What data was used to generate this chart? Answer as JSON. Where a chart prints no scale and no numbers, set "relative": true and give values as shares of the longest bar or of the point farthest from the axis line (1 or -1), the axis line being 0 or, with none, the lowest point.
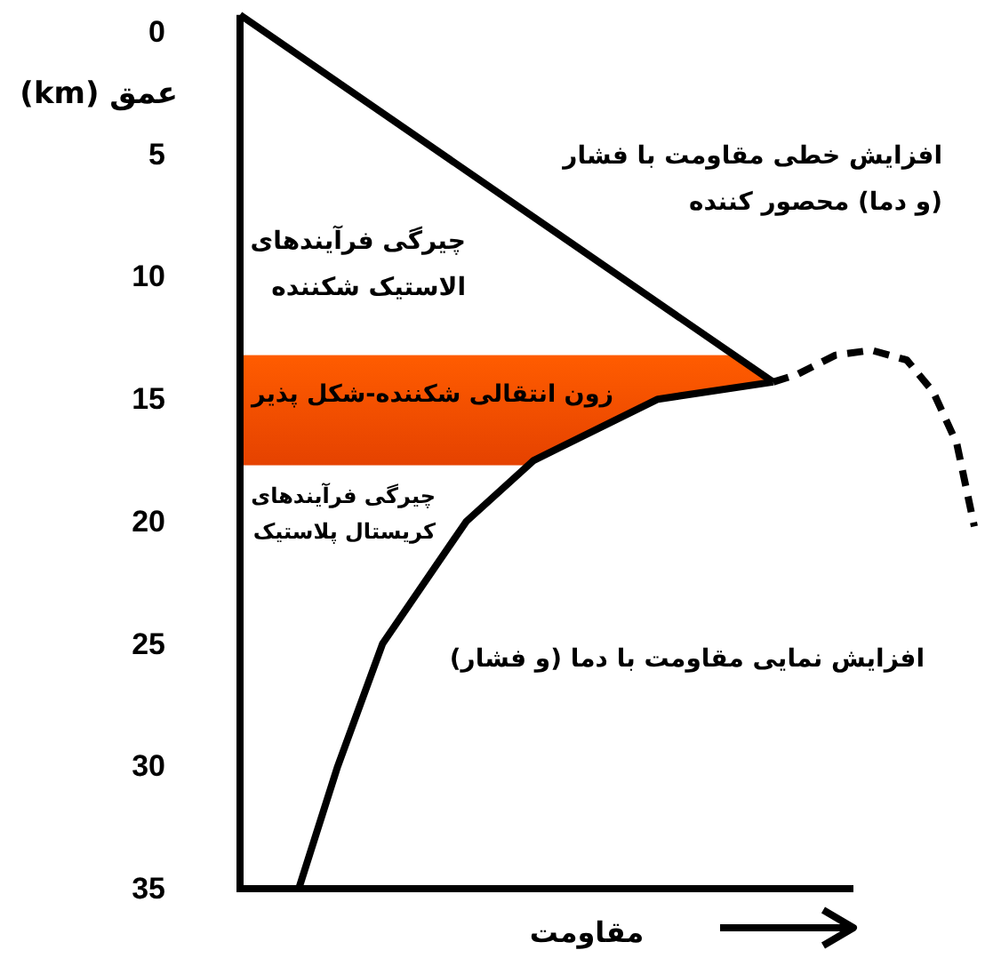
{
  "chart_data": {
    "type": "line",
    "relative": true,
    "orientation": "horizontal",
    "ylabel": "عمق (km)",
    "xlabel": "مقاومت",
    "ylim": [
      35,
      -0.7
    ],
    "yticks": [
      0,
      5,
      10,
      15,
      20,
      25,
      30,
      35
    ],
    "marker": "none",
    "series": [
      {
        "color": "#000000",
        "line_style": "solid",
        "x": [
          -0.7,
          14.3
        ],
        "values": [
          0,
          0.726
        ]
      },
      {
        "color": "#000000",
        "line_style": "solid",
        "x": [
          35,
          30,
          25,
          20,
          17.5,
          15,
          14.3
        ],
        "values": [
          0.08,
          0.133,
          0.194,
          0.308,
          0.4,
          0.569,
          0.726
        ]
      },
      {
        "color": "#000000",
        "line_style": "dashed",
        "x": [
          14.3,
          14.0,
          13.2,
          13.0,
          13.4,
          14.7,
          16.8,
          20.2
        ],
        "values": [
          0.726,
          0.758,
          0.811,
          0.86,
          0.908,
          0.944,
          0.976,
          1.0
        ]
      }
    ],
    "bands": [
      {
        "axis": "y",
        "from": 13.2,
        "to": 17.7,
        "label": "زون انتقالی شکننده-شکل پذیر",
        "color": "#ff4a00"
      }
    ],
    "annotations": [
      "افزایش خطی مقاومت با فشار\n(و دما) محصور کننده",
      "چیرگی فرآیندهای\nالاستیک شکننده",
      "چیرگی فرآیندهای\nکریستال پلاستیک",
      "افزایش نمایی مقاومت با دما (و فشار)"
    ]
  }
}
